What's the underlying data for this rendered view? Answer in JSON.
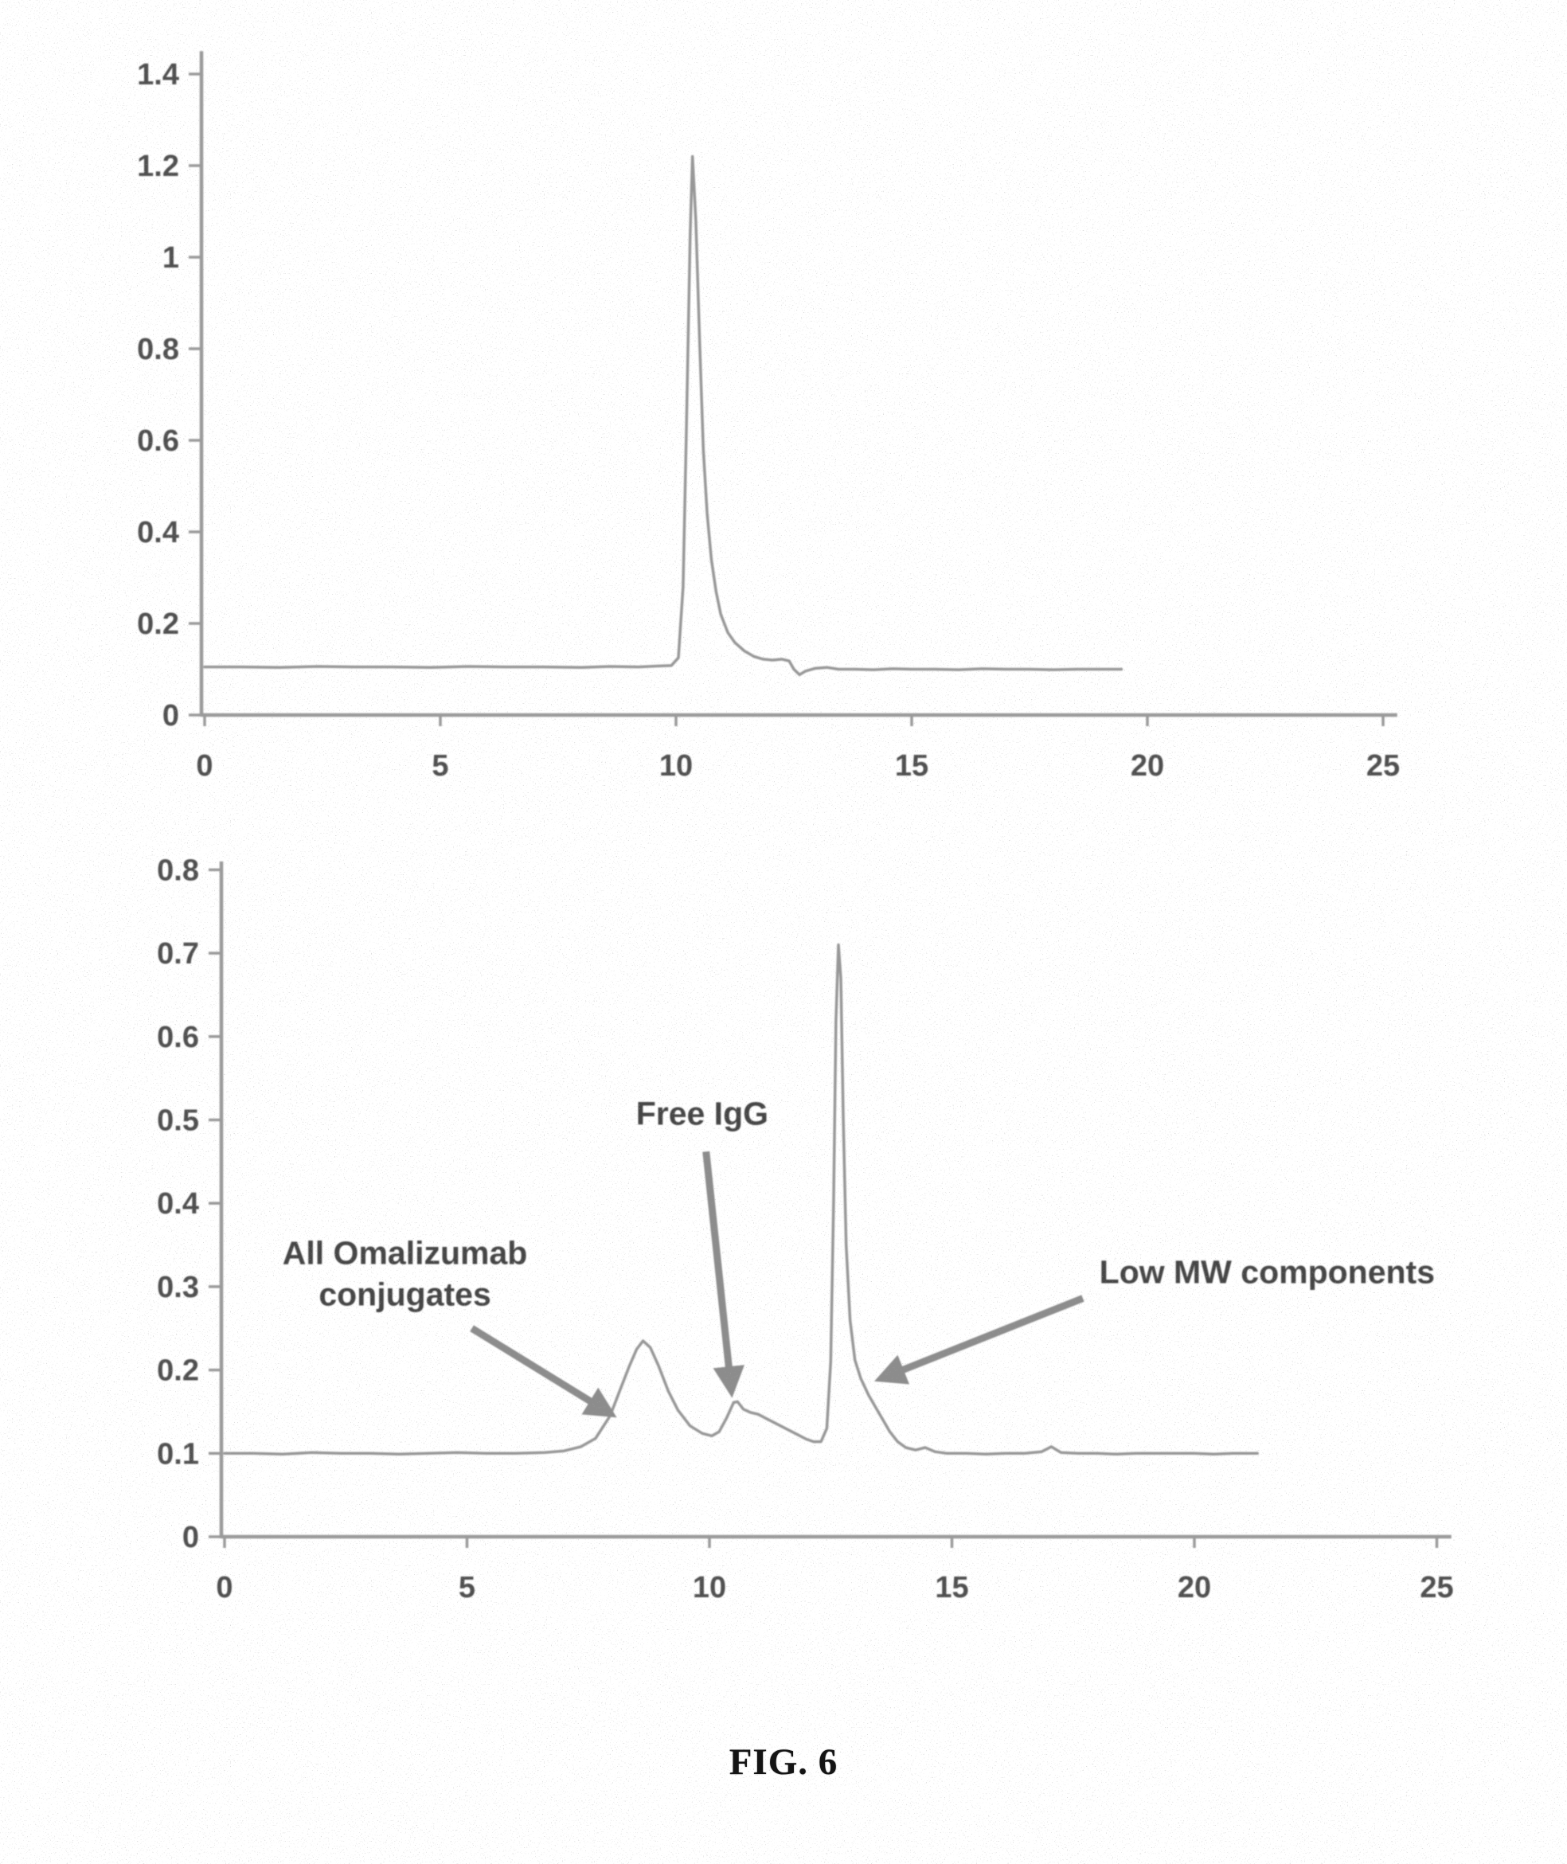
{
  "figure": {
    "caption": "FIG. 6"
  },
  "palette": {
    "trace": "#979797",
    "axis": "#9a9a9a",
    "tick_text": "#4f4f4f",
    "annotation_text": "#454545",
    "arrow": "#8c8c8c",
    "background": "#ffffff"
  },
  "chart_data": [
    {
      "id": "top",
      "type": "line",
      "title": "",
      "xlabel": "",
      "ylabel": "",
      "xlim": [
        0,
        25.3
      ],
      "ylim": [
        0,
        1.45
      ],
      "grid": false,
      "legend": "none",
      "xticks": [
        0,
        5,
        10,
        15,
        20,
        25
      ],
      "xtick_labels": [
        "0",
        "5",
        "10",
        "15",
        "20",
        "25"
      ],
      "yticks": [
        0,
        0.2,
        0.4,
        0.6,
        0.8,
        1.0,
        1.2,
        1.4
      ],
      "ytick_labels": [
        "0",
        "0.2",
        "0.4",
        "0.6",
        "0.8",
        "1",
        "1.2",
        "1.4"
      ],
      "series": [
        {
          "name": "purified-conjugate-trace",
          "peak_summary": "baseline 0.105, single sharp peak apex 1.22 at x=10.35, trace ends at x=19.45",
          "points": [
            [
              0,
              0.105
            ],
            [
              0.8,
              0.105
            ],
            [
              1.6,
              0.104
            ],
            [
              2.4,
              0.106
            ],
            [
              3.2,
              0.105
            ],
            [
              4,
              0.105
            ],
            [
              4.8,
              0.104
            ],
            [
              5.6,
              0.106
            ],
            [
              6.4,
              0.105
            ],
            [
              7.2,
              0.105
            ],
            [
              8,
              0.104
            ],
            [
              8.6,
              0.106
            ],
            [
              9.2,
              0.105
            ],
            [
              9.6,
              0.107
            ],
            [
              9.9,
              0.108
            ],
            [
              10.05,
              0.125
            ],
            [
              10.15,
              0.28
            ],
            [
              10.22,
              0.62
            ],
            [
              10.3,
              1.05
            ],
            [
              10.35,
              1.22
            ],
            [
              10.42,
              1.08
            ],
            [
              10.5,
              0.82
            ],
            [
              10.58,
              0.58
            ],
            [
              10.66,
              0.44
            ],
            [
              10.75,
              0.34
            ],
            [
              10.85,
              0.27
            ],
            [
              10.95,
              0.22
            ],
            [
              11.1,
              0.18
            ],
            [
              11.25,
              0.158
            ],
            [
              11.45,
              0.14
            ],
            [
              11.65,
              0.128
            ],
            [
              11.85,
              0.122
            ],
            [
              12.05,
              0.12
            ],
            [
              12.25,
              0.122
            ],
            [
              12.4,
              0.118
            ],
            [
              12.5,
              0.1
            ],
            [
              12.62,
              0.088
            ],
            [
              12.75,
              0.096
            ],
            [
              12.95,
              0.102
            ],
            [
              13.2,
              0.104
            ],
            [
              13.45,
              0.1
            ],
            [
              13.8,
              0.1
            ],
            [
              14.2,
              0.099
            ],
            [
              14.6,
              0.101
            ],
            [
              15,
              0.1
            ],
            [
              15.5,
              0.1
            ],
            [
              16,
              0.099
            ],
            [
              16.5,
              0.101
            ],
            [
              17,
              0.1
            ],
            [
              17.5,
              0.1
            ],
            [
              18,
              0.099
            ],
            [
              18.5,
              0.1
            ],
            [
              19,
              0.1
            ],
            [
              19.45,
              0.1
            ]
          ]
        }
      ],
      "annotations": []
    },
    {
      "id": "bottom",
      "type": "line",
      "title": "",
      "xlabel": "",
      "ylabel": "",
      "xlim": [
        0,
        25.3
      ],
      "ylim": [
        0,
        0.81
      ],
      "grid": false,
      "legend": "none",
      "xticks": [
        0,
        5,
        10,
        15,
        20,
        25
      ],
      "xtick_labels": [
        "0",
        "5",
        "10",
        "15",
        "20",
        "25"
      ],
      "yticks": [
        0,
        0.1,
        0.2,
        0.3,
        0.4,
        0.5,
        0.6,
        0.7,
        0.8
      ],
      "ytick_labels": [
        "0",
        "0.1",
        "0.2",
        "0.3",
        "0.4",
        "0.5",
        "0.6",
        "0.7",
        "0.8"
      ],
      "series": [
        {
          "name": "reaction-mixture-trace",
          "peak_summary": "baseline 0.1; conjugate hump 0.235 at x=8.6; Free IgG bump 0.16 at x=10.5; main peak 0.71 at x=12.66 with shoulder; trace ends at x=21.3",
          "points": [
            [
              0,
              0.1
            ],
            [
              0.6,
              0.1
            ],
            [
              1.2,
              0.099
            ],
            [
              1.8,
              0.101
            ],
            [
              2.4,
              0.1
            ],
            [
              3,
              0.1
            ],
            [
              3.6,
              0.099
            ],
            [
              4.2,
              0.1
            ],
            [
              4.8,
              0.101
            ],
            [
              5.4,
              0.1
            ],
            [
              6,
              0.1
            ],
            [
              6.6,
              0.101
            ],
            [
              7,
              0.103
            ],
            [
              7.35,
              0.108
            ],
            [
              7.65,
              0.118
            ],
            [
              7.95,
              0.145
            ],
            [
              8.15,
              0.175
            ],
            [
              8.35,
              0.205
            ],
            [
              8.5,
              0.225
            ],
            [
              8.63,
              0.235
            ],
            [
              8.78,
              0.227
            ],
            [
              8.95,
              0.205
            ],
            [
              9.15,
              0.175
            ],
            [
              9.35,
              0.152
            ],
            [
              9.6,
              0.133
            ],
            [
              9.85,
              0.124
            ],
            [
              10.05,
              0.121
            ],
            [
              10.2,
              0.126
            ],
            [
              10.35,
              0.142
            ],
            [
              10.5,
              0.161
            ],
            [
              10.58,
              0.162
            ],
            [
              10.7,
              0.153
            ],
            [
              10.85,
              0.149
            ],
            [
              11,
              0.147
            ],
            [
              11.2,
              0.141
            ],
            [
              11.4,
              0.135
            ],
            [
              11.6,
              0.129
            ],
            [
              11.8,
              0.123
            ],
            [
              12,
              0.117
            ],
            [
              12.15,
              0.114
            ],
            [
              12.3,
              0.114
            ],
            [
              12.42,
              0.13
            ],
            [
              12.5,
              0.21
            ],
            [
              12.56,
              0.4
            ],
            [
              12.61,
              0.62
            ],
            [
              12.66,
              0.71
            ],
            [
              12.71,
              0.67
            ],
            [
              12.76,
              0.5
            ],
            [
              12.82,
              0.35
            ],
            [
              12.9,
              0.26
            ],
            [
              13,
              0.212
            ],
            [
              13.12,
              0.19
            ],
            [
              13.28,
              0.17
            ],
            [
              13.42,
              0.156
            ],
            [
              13.58,
              0.14
            ],
            [
              13.72,
              0.126
            ],
            [
              13.88,
              0.114
            ],
            [
              14.05,
              0.107
            ],
            [
              14.25,
              0.104
            ],
            [
              14.45,
              0.107
            ],
            [
              14.65,
              0.102
            ],
            [
              14.9,
              0.1
            ],
            [
              15.3,
              0.1
            ],
            [
              15.7,
              0.099
            ],
            [
              16.1,
              0.1
            ],
            [
              16.5,
              0.1
            ],
            [
              16.85,
              0.102
            ],
            [
              17.05,
              0.108
            ],
            [
              17.25,
              0.101
            ],
            [
              17.6,
              0.1
            ],
            [
              18,
              0.1
            ],
            [
              18.4,
              0.099
            ],
            [
              18.8,
              0.1
            ],
            [
              19.2,
              0.1
            ],
            [
              19.6,
              0.1
            ],
            [
              20,
              0.1
            ],
            [
              20.4,
              0.099
            ],
            [
              20.8,
              0.1
            ],
            [
              21.3,
              0.1
            ]
          ]
        }
      ],
      "annotations": [
        {
          "lines": [
            "All Omalizumab",
            "conjugates"
          ],
          "at": [
            3.72,
            0.325
          ],
          "arrow": {
            "from": [
              5.1,
              0.25
            ],
            "to": [
              7.95,
              0.148
            ]
          }
        },
        {
          "lines": [
            "Free IgG"
          ],
          "at": [
            9.85,
            0.517
          ],
          "arrow": {
            "from": [
              9.93,
              0.462
            ],
            "to": [
              10.45,
              0.176
            ]
          }
        },
        {
          "lines": [
            "Low MW components"
          ],
          "at": [
            21.5,
            0.327
          ],
          "arrow": {
            "from": [
              17.7,
              0.286
            ],
            "to": [
              13.55,
              0.19
            ]
          }
        }
      ]
    }
  ]
}
